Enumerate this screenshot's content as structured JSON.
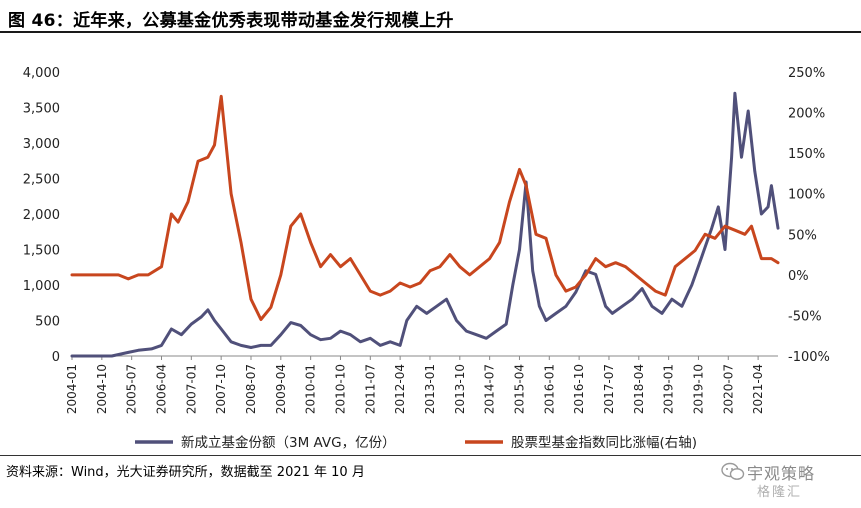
{
  "header": {
    "title": "图 46：近年来，公募基金优秀表现带动基金发行规模上升"
  },
  "footer": {
    "source": "资料来源：Wind，光大证券研究所，数据截至 2021 年 10 月"
  },
  "watermark": {
    "text": "宇观策略",
    "sub": "格隆汇"
  },
  "chart_data": {
    "type": "line",
    "title": "",
    "grid": false,
    "legend_position": "bottom",
    "x_tick_labels": [
      "2004-01",
      "2004-10",
      "2005-07",
      "2006-04",
      "2007-01",
      "2007-10",
      "2008-07",
      "2009-04",
      "2010-01",
      "2010-10",
      "2011-07",
      "2012-04",
      "2013-01",
      "2013-10",
      "2014-07",
      "2015-04",
      "2016-01",
      "2016-10",
      "2017-07",
      "2018-04",
      "2019-01",
      "2019-10",
      "2020-07",
      "2021-04"
    ],
    "y_left": {
      "min": 0,
      "max": 4000,
      "ticks": [
        "0",
        "500",
        "1,000",
        "1,500",
        "2,000",
        "2,500",
        "3,000",
        "3,500",
        "4,000"
      ]
    },
    "y_right": {
      "min": -100,
      "max": 250,
      "ticks": [
        "-100%",
        "-50%",
        "0%",
        "50%",
        "100%",
        "150%",
        "200%",
        "250%"
      ]
    },
    "series": [
      {
        "name": "新成立基金份额（3M AVG，亿份）",
        "axis": "left",
        "color": "#50507a",
        "points": [
          [
            "2004-01",
            0
          ],
          [
            "2005-01",
            0
          ],
          [
            "2005-06",
            50
          ],
          [
            "2005-09",
            80
          ],
          [
            "2006-01",
            100
          ],
          [
            "2006-04",
            150
          ],
          [
            "2006-07",
            380
          ],
          [
            "2006-10",
            300
          ],
          [
            "2007-01",
            450
          ],
          [
            "2007-04",
            550
          ],
          [
            "2007-06",
            650
          ],
          [
            "2007-08",
            500
          ],
          [
            "2007-10",
            380
          ],
          [
            "2008-01",
            200
          ],
          [
            "2008-04",
            150
          ],
          [
            "2008-07",
            120
          ],
          [
            "2008-10",
            150
          ],
          [
            "2009-01",
            150
          ],
          [
            "2009-04",
            300
          ],
          [
            "2009-07",
            470
          ],
          [
            "2009-10",
            430
          ],
          [
            "2010-01",
            300
          ],
          [
            "2010-04",
            230
          ],
          [
            "2010-07",
            250
          ],
          [
            "2010-10",
            350
          ],
          [
            "2011-01",
            300
          ],
          [
            "2011-04",
            200
          ],
          [
            "2011-07",
            250
          ],
          [
            "2011-10",
            150
          ],
          [
            "2012-01",
            200
          ],
          [
            "2012-04",
            150
          ],
          [
            "2012-06",
            500
          ],
          [
            "2012-09",
            700
          ],
          [
            "2012-12",
            600
          ],
          [
            "2013-03",
            700
          ],
          [
            "2013-06",
            800
          ],
          [
            "2013-09",
            500
          ],
          [
            "2013-12",
            350
          ],
          [
            "2014-03",
            300
          ],
          [
            "2014-06",
            250
          ],
          [
            "2014-09",
            350
          ],
          [
            "2014-12",
            450
          ],
          [
            "2015-02",
            1000
          ],
          [
            "2015-04",
            1500
          ],
          [
            "2015-06",
            2450
          ],
          [
            "2015-08",
            1200
          ],
          [
            "2015-10",
            700
          ],
          [
            "2015-12",
            500
          ],
          [
            "2016-03",
            600
          ],
          [
            "2016-06",
            700
          ],
          [
            "2016-09",
            900
          ],
          [
            "2016-12",
            1200
          ],
          [
            "2017-03",
            1150
          ],
          [
            "2017-06",
            700
          ],
          [
            "2017-08",
            600
          ],
          [
            "2017-11",
            700
          ],
          [
            "2018-02",
            800
          ],
          [
            "2018-05",
            950
          ],
          [
            "2018-08",
            700
          ],
          [
            "2018-11",
            600
          ],
          [
            "2019-02",
            800
          ],
          [
            "2019-05",
            700
          ],
          [
            "2019-08",
            1000
          ],
          [
            "2019-11",
            1400
          ],
          [
            "2020-02",
            1800
          ],
          [
            "2020-04",
            2100
          ],
          [
            "2020-06",
            1500
          ],
          [
            "2020-08",
            2800
          ],
          [
            "2020-09",
            3700
          ],
          [
            "2020-11",
            2800
          ],
          [
            "2021-01",
            3450
          ],
          [
            "2021-03",
            2600
          ],
          [
            "2021-05",
            2000
          ],
          [
            "2021-07",
            2100
          ],
          [
            "2021-08",
            2400
          ],
          [
            "2021-10",
            1800
          ]
        ]
      },
      {
        "name": "股票型基金指数同比涨幅(右轴)",
        "axis": "right",
        "color": "#c8461e",
        "points": [
          [
            "2004-01",
            0
          ],
          [
            "2005-03",
            0
          ],
          [
            "2005-06",
            -5
          ],
          [
            "2005-09",
            0
          ],
          [
            "2005-12",
            0
          ],
          [
            "2006-04",
            10
          ],
          [
            "2006-07",
            75
          ],
          [
            "2006-09",
            65
          ],
          [
            "2006-12",
            90
          ],
          [
            "2007-03",
            140
          ],
          [
            "2007-06",
            145
          ],
          [
            "2007-08",
            160
          ],
          [
            "2007-10",
            220
          ],
          [
            "2008-01",
            100
          ],
          [
            "2008-04",
            40
          ],
          [
            "2008-07",
            -30
          ],
          [
            "2008-10",
            -55
          ],
          [
            "2009-01",
            -40
          ],
          [
            "2009-04",
            0
          ],
          [
            "2009-07",
            60
          ],
          [
            "2009-10",
            75
          ],
          [
            "2010-01",
            40
          ],
          [
            "2010-04",
            10
          ],
          [
            "2010-07",
            25
          ],
          [
            "2010-10",
            10
          ],
          [
            "2011-01",
            20
          ],
          [
            "2011-04",
            0
          ],
          [
            "2011-07",
            -20
          ],
          [
            "2011-10",
            -25
          ],
          [
            "2012-01",
            -20
          ],
          [
            "2012-04",
            -10
          ],
          [
            "2012-07",
            -15
          ],
          [
            "2012-10",
            -10
          ],
          [
            "2013-01",
            5
          ],
          [
            "2013-04",
            10
          ],
          [
            "2013-07",
            25
          ],
          [
            "2013-10",
            10
          ],
          [
            "2014-01",
            0
          ],
          [
            "2014-04",
            10
          ],
          [
            "2014-07",
            20
          ],
          [
            "2014-10",
            40
          ],
          [
            "2015-01",
            90
          ],
          [
            "2015-04",
            130
          ],
          [
            "2015-06",
            110
          ],
          [
            "2015-09",
            50
          ],
          [
            "2015-12",
            45
          ],
          [
            "2016-03",
            0
          ],
          [
            "2016-06",
            -20
          ],
          [
            "2016-09",
            -15
          ],
          [
            "2016-12",
            0
          ],
          [
            "2017-03",
            20
          ],
          [
            "2017-06",
            10
          ],
          [
            "2017-09",
            15
          ],
          [
            "2017-12",
            10
          ],
          [
            "2018-03",
            0
          ],
          [
            "2018-06",
            -10
          ],
          [
            "2018-09",
            -20
          ],
          [
            "2018-12",
            -25
          ],
          [
            "2019-03",
            10
          ],
          [
            "2019-06",
            20
          ],
          [
            "2019-09",
            30
          ],
          [
            "2019-12",
            50
          ],
          [
            "2020-03",
            45
          ],
          [
            "2020-06",
            60
          ],
          [
            "2020-09",
            55
          ],
          [
            "2020-12",
            50
          ],
          [
            "2021-02",
            60
          ],
          [
            "2021-05",
            20
          ],
          [
            "2021-08",
            20
          ],
          [
            "2021-10",
            15
          ]
        ]
      }
    ]
  }
}
